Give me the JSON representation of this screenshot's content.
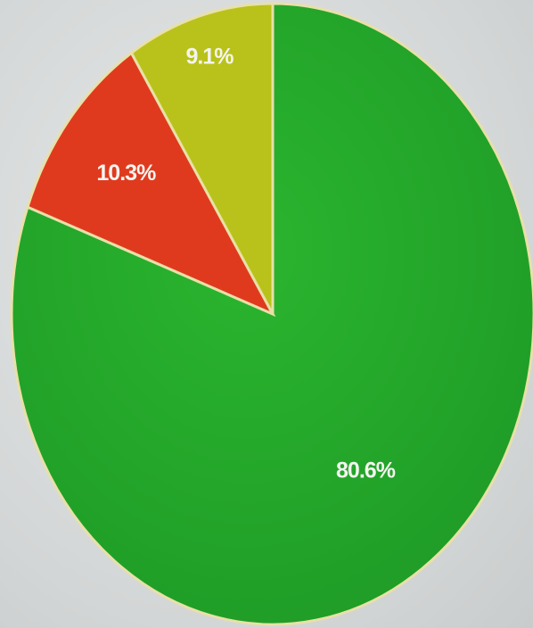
{
  "chart_data": {
    "type": "pie",
    "slices": [
      {
        "value": 80.6,
        "label": "80.6%",
        "color": "#22a82a"
      },
      {
        "value": 10.3,
        "label": "10.3%",
        "color": "#e03a1e"
      },
      {
        "value": 9.1,
        "label": "9.1%",
        "color": "#b9c21a"
      }
    ],
    "start_angle_deg": 0,
    "direction": "clockwise",
    "legend": "none"
  }
}
